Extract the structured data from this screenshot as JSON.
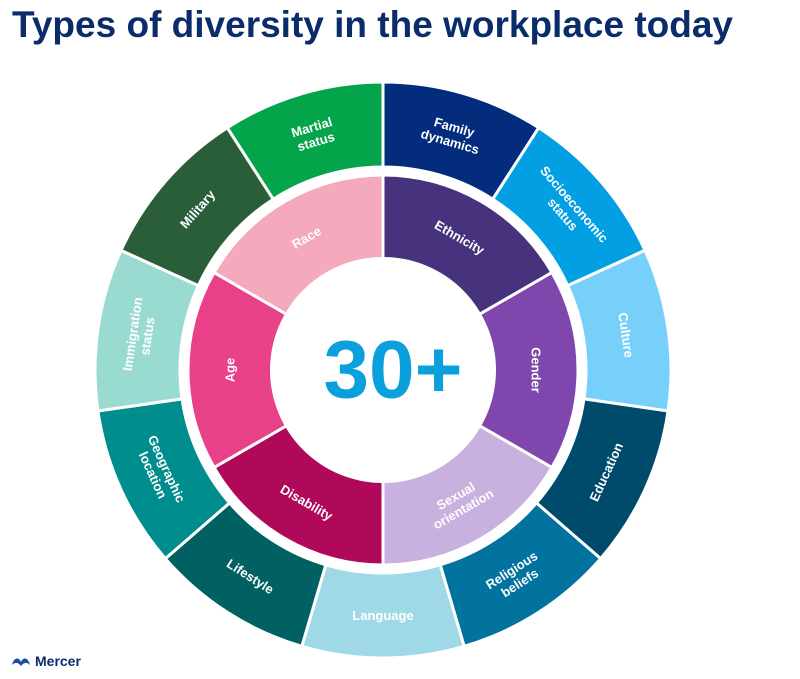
{
  "title": "Types of diversity in the workplace today",
  "center_label": "30+",
  "logo_text": "Mercer",
  "inner_ring": [
    {
      "label": [
        "Ethnicity"
      ],
      "color": "#46327d"
    },
    {
      "label": [
        "Gender"
      ],
      "color": "#7f46ad"
    },
    {
      "label": [
        "Sexual",
        "orientation"
      ],
      "color": "#c9b1df"
    },
    {
      "label": [
        "Disability"
      ],
      "color": "#b0095a"
    },
    {
      "label": [
        "Age"
      ],
      "color": "#e9408a"
    },
    {
      "label": [
        "Race"
      ],
      "color": "#f5a9bd"
    }
  ],
  "outer_ring": [
    {
      "label": [
        "Family",
        "dynamics"
      ],
      "color": "#032c7d"
    },
    {
      "label": [
        "Socioeconomic",
        "status"
      ],
      "color": "#029fe3"
    },
    {
      "label": [
        "Culture"
      ],
      "color": "#77d0fa"
    },
    {
      "label": [
        "Education"
      ],
      "color": "#004a6c"
    },
    {
      "label": [
        "Religious",
        "beliefs"
      ],
      "color": "#02729f"
    },
    {
      "label": [
        "Language"
      ],
      "color": "#9fd9e8"
    },
    {
      "label": [
        "Lifestyle"
      ],
      "color": "#006062"
    },
    {
      "label": [
        "Geographic",
        "location"
      ],
      "color": "#008d8d"
    },
    {
      "label": [
        "Immigration",
        "status"
      ],
      "color": "#99dbd1"
    },
    {
      "label": [
        "Military"
      ],
      "color": "#2a5e39"
    },
    {
      "label": [
        "Martial",
        "status"
      ],
      "color": "#03a44a"
    }
  ]
}
